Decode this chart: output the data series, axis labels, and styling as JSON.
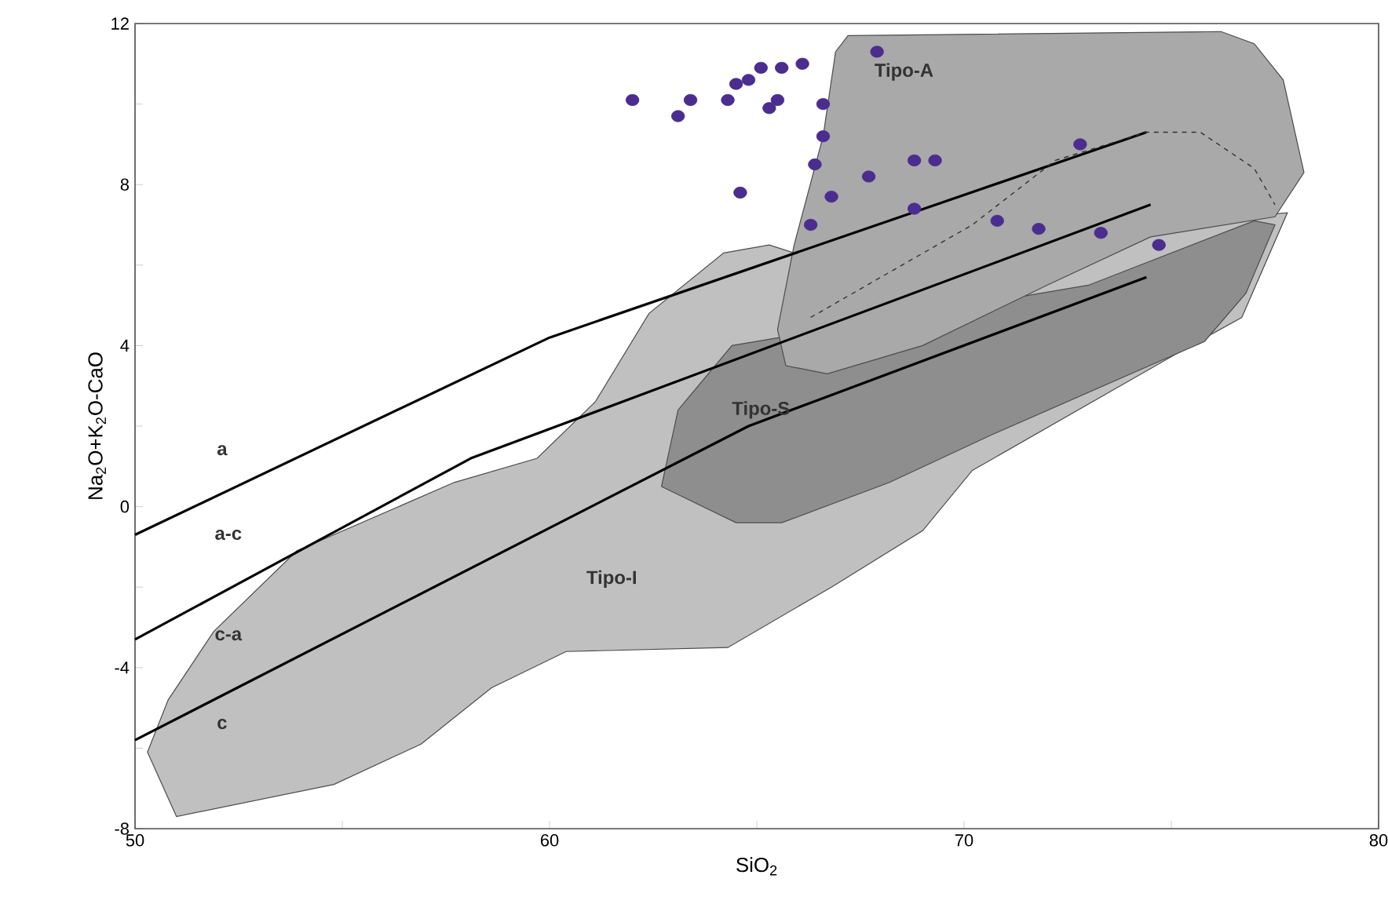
{
  "chart_data": {
    "type": "scatter",
    "xlabel": "SiO$_{2}$",
    "ylabel": "Na$_{2}$O+K$_{2}$O-CaO",
    "xlim": [
      50,
      80
    ],
    "ylim": [
      -8,
      12
    ],
    "xticks": [
      50,
      {
        "value": 55,
        "label": null
      },
      60,
      {
        "value": 65,
        "label": null
      },
      70,
      {
        "value": 75,
        "label": null
      },
      80
    ],
    "yticks": [
      -8,
      {
        "value": -6,
        "label": null
      },
      -4,
      {
        "value": -2,
        "label": null
      },
      0,
      {
        "value": 2,
        "label": null
      },
      4,
      {
        "value": 6,
        "label": null
      },
      8,
      {
        "value": 10,
        "label": null
      },
      12
    ],
    "series": [
      {
        "type": "area",
        "name": "Tipo-I",
        "color": "#c0c0c0",
        "x": [
          51.0,
          50.3,
          50.8,
          51.9,
          53.9,
          57.7,
          59.7,
          61.1,
          62.4,
          64.2,
          65.3,
          65.9,
          77.8,
          76.7,
          75.3,
          70.2,
          69.0,
          66.8,
          64.3,
          60.4,
          58.6,
          56.9,
          54.8
        ],
        "values": [
          -7.7,
          -6.1,
          -4.8,
          -3.1,
          -1.1,
          0.6,
          1.2,
          2.6,
          4.8,
          6.3,
          6.5,
          6.3,
          7.3,
          4.7,
          3.9,
          0.9,
          -0.6,
          -2.0,
          -3.5,
          -3.6,
          -4.5,
          -5.9,
          -6.9
        ]
      },
      {
        "type": "area",
        "name": "Tipo-S",
        "color": "#8e8e8e",
        "x": [
          62.7,
          63.1,
          64.4,
          68.0,
          73.0,
          75.2,
          77.0,
          77.5,
          76.8,
          75.8,
          70.7,
          68.2,
          65.6,
          64.5
        ],
        "values": [
          0.5,
          2.4,
          4.0,
          null,
          5.5,
          null,
          7.1,
          7.0,
          5.3,
          4.1,
          1.8,
          0.6,
          -0.4,
          -0.4
        ]
      },
      {
        "type": "area",
        "name": "Tipo-A",
        "color": "#a9a9a9",
        "x": [
          67.2,
          76.2,
          77.0,
          77.7,
          78.2,
          77.5,
          74.5,
          72.0,
          69.0,
          66.7,
          65.7,
          65.5,
          65.9,
          66.6,
          66.9
        ],
        "values": [
          11.7,
          11.8,
          11.5,
          10.6,
          8.3,
          7.2,
          6.7,
          5.5,
          4.0,
          3.3,
          3.5,
          4.4,
          6.5,
          9.2,
          11.3
        ]
      },
      {
        "type": "line",
        "color": "#000000",
        "line_style": "solid",
        "x": [
          50,
          60,
          74.4
        ],
        "values": [
          -0.7,
          4.2,
          9.3
        ]
      },
      {
        "type": "line",
        "color": "#000000",
        "line_style": "solid",
        "x": [
          50,
          58.1,
          74.5
        ],
        "values": [
          -3.3,
          1.2,
          7.5
        ]
      },
      {
        "type": "line",
        "color": "#000000",
        "line_style": "solid",
        "x": [
          50,
          64.8,
          74.4
        ],
        "values": [
          -5.8,
          2.0,
          5.7
        ]
      },
      {
        "type": "line",
        "color": "#333333",
        "line_style": "dashed",
        "x": [
          66.3,
          70.2,
          72.2,
          74.4,
          75.7,
          77.0,
          77.5
        ],
        "values": [
          4.7,
          7.0,
          8.6,
          9.3,
          9.3,
          8.4,
          7.5
        ]
      },
      {
        "color": "#4b2c8f",
        "marker": "circle",
        "x": [
          62.0,
          63.1,
          63.4,
          64.3,
          64.5,
          64.8,
          65.1,
          65.6,
          66.1,
          65.3,
          65.5,
          66.6,
          67.9,
          66.6,
          66.4,
          64.6,
          66.8,
          67.7,
          68.8,
          69.3,
          66.3,
          68.8,
          72.8,
          70.8,
          71.8,
          73.3,
          74.7
        ],
        "values": [
          10.1,
          9.7,
          10.1,
          10.1,
          10.5,
          10.6,
          10.9,
          10.9,
          11.0,
          9.9,
          10.1,
          10.0,
          11.3,
          9.2,
          8.5,
          7.8,
          7.7,
          8.2,
          8.6,
          8.6,
          7.0,
          7.4,
          9.0,
          7.1,
          6.9,
          6.8,
          6.5
        ]
      }
    ],
    "annotations": [
      "a",
      "a-c",
      "c-a",
      "c"
    ]
  }
}
